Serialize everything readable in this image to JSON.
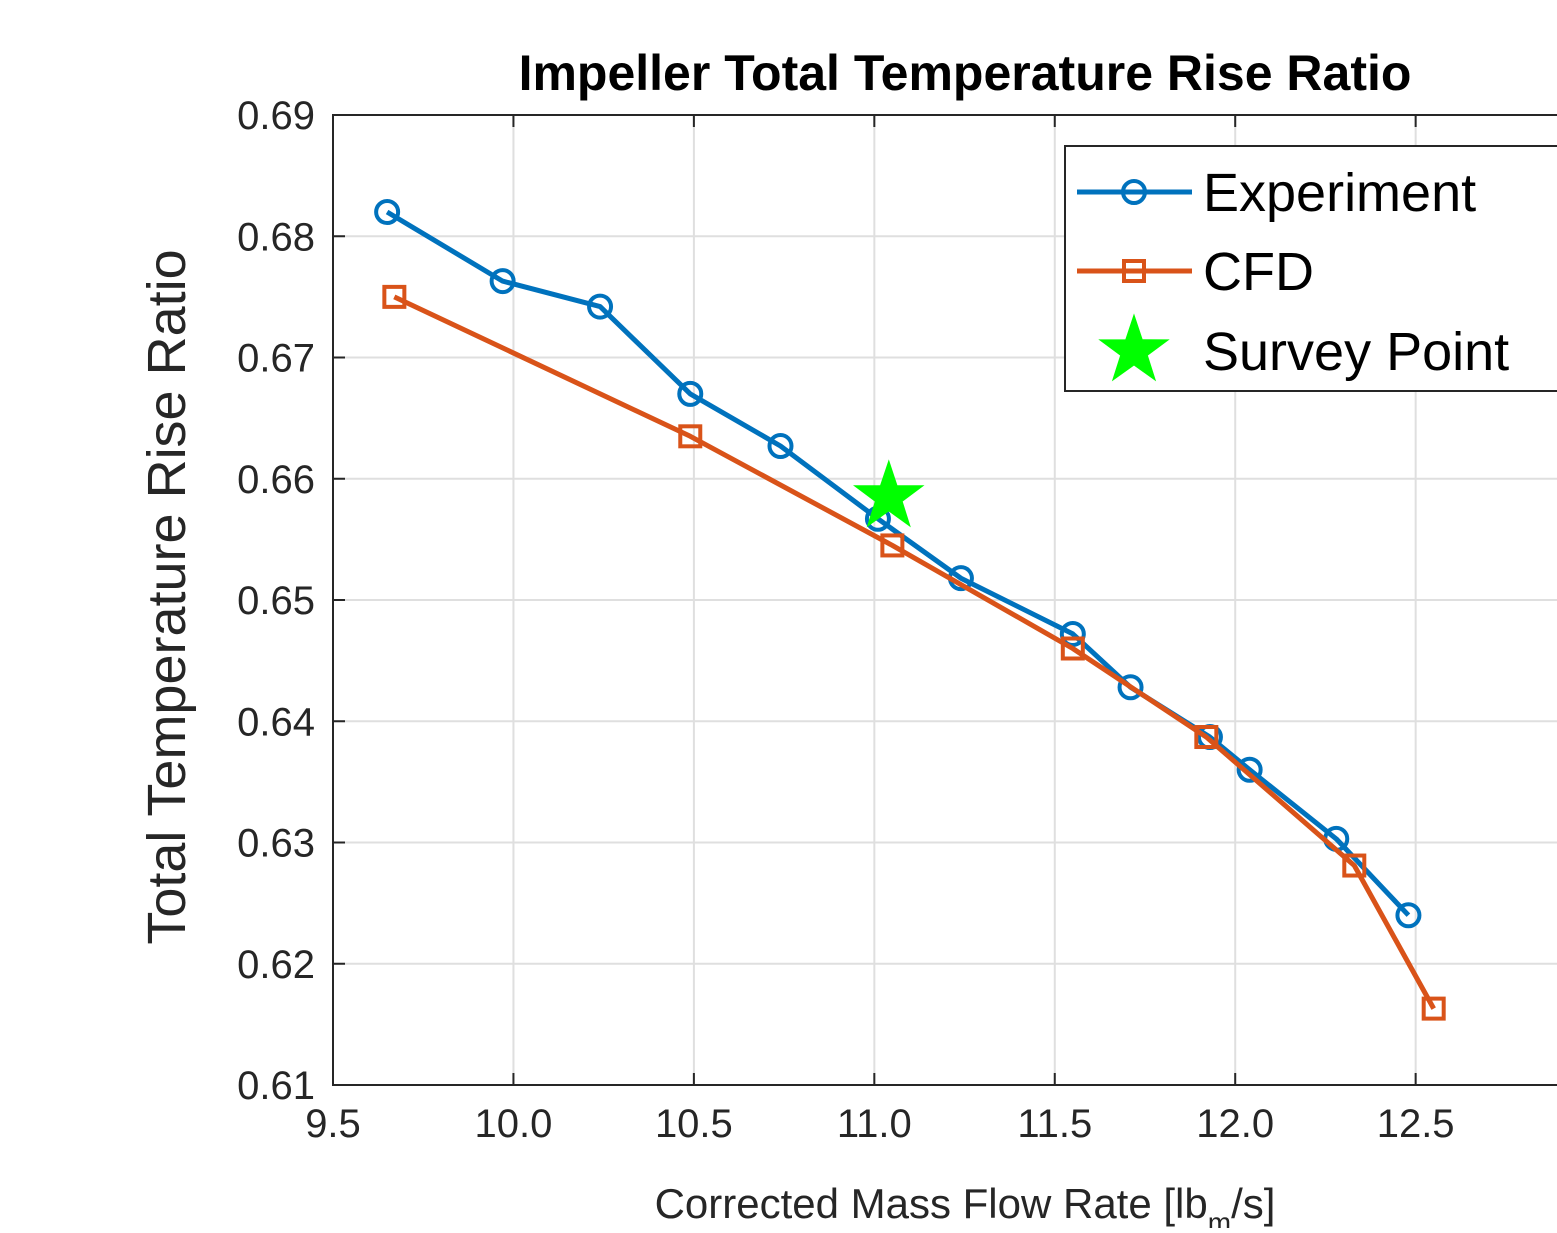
{
  "chart_data": {
    "type": "line",
    "title": "Impeller Total Temperature Rise Ratio",
    "xlabel_main": "Corrected Mass Flow Rate [lb",
    "xlabel_sub": "m",
    "xlabel_end": "/s]",
    "ylabel": "Total Temperature Rise Ratio",
    "xlim": [
      9.5,
      12.9
    ],
    "ylim": [
      0.61,
      0.69
    ],
    "x_ticks": [
      "9.5",
      "10.0",
      "10.5",
      "11.0",
      "11.5",
      "12.0",
      "12.5"
    ],
    "y_ticks": [
      "0.61",
      "0.62",
      "0.63",
      "0.64",
      "0.65",
      "0.66",
      "0.67",
      "0.68",
      "0.69"
    ],
    "grid": true,
    "legend_position": "top-right",
    "series": [
      {
        "name": "Experiment",
        "marker": "circle",
        "color": "#0072BD",
        "x": [
          9.65,
          9.97,
          10.24,
          10.49,
          10.74,
          11.01,
          11.24,
          11.55,
          11.71,
          11.93,
          12.04,
          12.28,
          12.48
        ],
        "y": [
          0.682,
          0.6763,
          0.6742,
          0.667,
          0.6627,
          0.6567,
          0.6518,
          0.6472,
          0.6428,
          0.6387,
          0.636,
          0.6303,
          0.624
        ]
      },
      {
        "name": "CFD",
        "marker": "square",
        "color": "#D95319",
        "x": [
          9.67,
          10.49,
          11.05,
          11.55,
          11.92,
          12.33,
          12.55
        ],
        "y": [
          0.675,
          0.6635,
          0.6545,
          0.646,
          0.6387,
          0.6281,
          0.6163
        ]
      },
      {
        "name": "Survey Point",
        "marker": "star",
        "color": "#00FF00",
        "x": [
          11.04
        ],
        "y": [
          0.6585
        ]
      }
    ]
  }
}
